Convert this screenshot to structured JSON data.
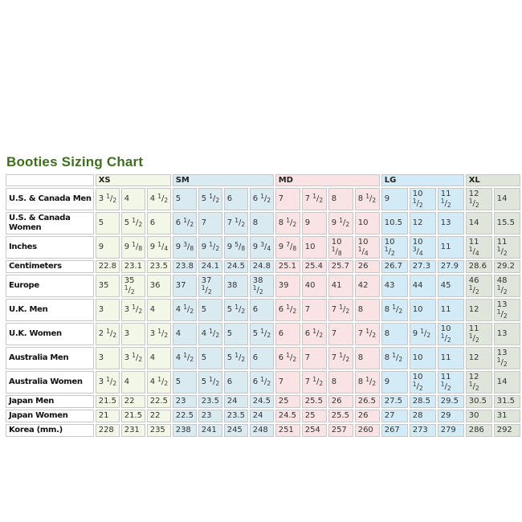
{
  "page": {
    "title": "Booties Sizing Chart",
    "title_color": "#3f6e21",
    "background_color": "#ffffff"
  },
  "chart_data": {
    "type": "table",
    "title": "Booties Sizing Chart",
    "border_color": "#c6c6c6",
    "corner_label": "",
    "column_groups": [
      {
        "label": "XS",
        "span": 3,
        "color": "#f3f7e7"
      },
      {
        "label": "SM",
        "span": 4,
        "color": "#d9eaf1"
      },
      {
        "label": "MD",
        "span": 4,
        "color": "#fae3e4"
      },
      {
        "label": "LG",
        "span": 3,
        "color": "#d3ebf6"
      },
      {
        "label": "XL",
        "span": 2,
        "color": "#dfe5da"
      }
    ],
    "rows": [
      {
        "label": "U.S. & Canada Men",
        "values": [
          "3 1/2",
          "4",
          "4 1/2",
          "5",
          "5 1/2",
          "6",
          "6 1/2",
          "7",
          "7 1/2",
          "8",
          "8 1/2",
          "9",
          "10 1/2",
          "11 1/2",
          "12 1/2",
          "14"
        ]
      },
      {
        "label": "U.S. & Canada Women",
        "values": [
          "5",
          "5 1/2",
          "6",
          "6 1/2",
          "7",
          "7 1/2",
          "8",
          "8 1/2",
          "9",
          "9 1/2",
          "10",
          "10.5",
          "12",
          "13",
          "14",
          "15.5"
        ]
      },
      {
        "label": "Inches",
        "values": [
          "9",
          "9 1/8",
          "9 1/4",
          "9 3/8",
          "9 1/2",
          "9 5/8",
          "9 3/4",
          "9 7/8",
          "10",
          "10 1/8",
          "10 1/4",
          "10 1/2",
          "10 3/4",
          "11",
          "11 1/4",
          "11 1/2"
        ]
      },
      {
        "label": "Centimeters",
        "values": [
          "22.8",
          "23.1",
          "23.5",
          "23.8",
          "24.1",
          "24.5",
          "24.8",
          "25.1",
          "25.4",
          "25.7",
          "26",
          "26.7",
          "27.3",
          "27.9",
          "28.6",
          "29.2"
        ]
      },
      {
        "label": "Europe",
        "values": [
          "35",
          "35 1/2",
          "36",
          "37",
          "37 1/2",
          "38",
          "38 1/2",
          "39",
          "40",
          "41",
          "42",
          "43",
          "44",
          "45",
          "46 1/2",
          "48 1/2"
        ]
      },
      {
        "label": "U.K. Men",
        "values": [
          "3",
          "3 1/2",
          "4",
          "4 1/2",
          "5",
          "5 1/2",
          "6",
          "6 1/2",
          "7",
          "7 1/2",
          "8",
          "8 1/2",
          "10",
          "11",
          "12",
          "13 1/2"
        ]
      },
      {
        "label": "U.K. Women",
        "values": [
          "2 1/2",
          "3",
          "3 1/2",
          "4",
          "4 1/2",
          "5",
          "5 1/2",
          "6",
          "6 1/2",
          "7",
          "7 1/2",
          "8",
          "9 1/2",
          "10 1/2",
          "11 1/2",
          "13"
        ]
      },
      {
        "label": "Australia Men",
        "values": [
          "3",
          "3 1/2",
          "4",
          "4 1/2",
          "5",
          "5 1/2",
          "6",
          "6 1/2",
          "7",
          "7 1/2",
          "8",
          "8 1/2",
          "10",
          "11",
          "12",
          "13 1/2"
        ]
      },
      {
        "label": "Australia Women",
        "values": [
          "3 1/2",
          "4",
          "4 1/2",
          "5",
          "5 1/2",
          "6",
          "6 1/2",
          "7",
          "7 1/2",
          "8",
          "8 1/2",
          "9",
          "10 1/2",
          "11 1/2",
          "12 1/2",
          "14"
        ]
      },
      {
        "label": "Japan Men",
        "values": [
          "21.5",
          "22",
          "22.5",
          "23",
          "23.5",
          "24",
          "24.5",
          "25",
          "25.5",
          "26",
          "26.5",
          "27.5",
          "28.5",
          "29.5",
          "30.5",
          "31.5"
        ]
      },
      {
        "label": "Japan Women",
        "values": [
          "21",
          "21.5",
          "22",
          "22.5",
          "23",
          "23.5",
          "24",
          "24.5",
          "25",
          "25.5",
          "26",
          "27",
          "28",
          "29",
          "30",
          "31"
        ]
      },
      {
        "label": "Korea (mm.)",
        "values": [
          "228",
          "231",
          "235",
          "238",
          "241",
          "245",
          "248",
          "251",
          "254",
          "257",
          "260",
          "267",
          "273",
          "279",
          "286",
          "292"
        ]
      }
    ]
  }
}
